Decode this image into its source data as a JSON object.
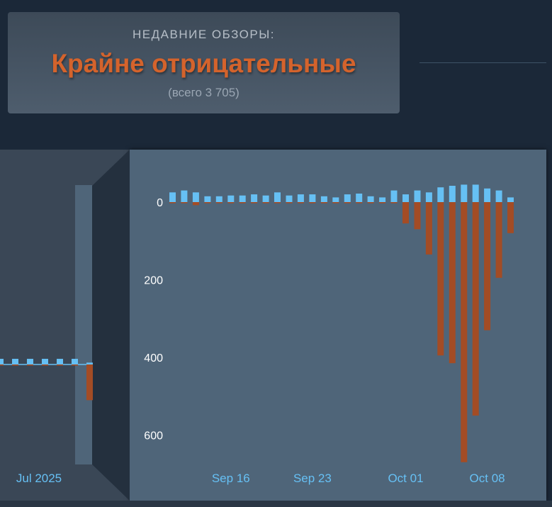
{
  "review_summary": {
    "heading": "НЕДАВНИЕ ОБЗОРЫ:",
    "rating": "Крайне отрицательные",
    "total": "(всего 3 705)"
  },
  "colors": {
    "positive": "#66c0f4",
    "negative": "#a34c25",
    "rating_accent": "#d4632c",
    "panel_background": "#4f6579",
    "page_background": "#1b2838"
  },
  "chart_data": [
    {
      "type": "bar",
      "label": "overview",
      "x_tick_labels": [
        "Jul 2025"
      ],
      "series": [
        {
          "values": [
            15,
            15,
            15,
            15,
            15,
            15,
            5
          ]
        },
        {
          "values": [
            -3,
            -3,
            -3,
            -3,
            -3,
            -3,
            -95
          ]
        }
      ]
    },
    {
      "type": "bar",
      "label": "detail",
      "x_tick_labels": [
        "Sep 16",
        "Sep 23",
        "Oct 01",
        "Oct 08"
      ],
      "y_tick_labels": [
        "0",
        "200",
        "400",
        "600"
      ],
      "ylim": [
        -680,
        45
      ],
      "grid": false,
      "series": [
        {
          "values": [
            25,
            30,
            25,
            15,
            15,
            17,
            17,
            20,
            17,
            25,
            17,
            20,
            20,
            15,
            12,
            20,
            22,
            15,
            12,
            30,
            20,
            30,
            25,
            38,
            42,
            45,
            45,
            35,
            30,
            12
          ]
        },
        {
          "values": [
            -3,
            -3,
            -8,
            -3,
            -3,
            -3,
            -3,
            -3,
            -3,
            -3,
            -3,
            -3,
            -3,
            -3,
            -3,
            -3,
            -3,
            -3,
            -3,
            -3,
            -55,
            -70,
            -135,
            -395,
            -415,
            -670,
            -550,
            -330,
            -195,
            -80
          ]
        }
      ]
    }
  ]
}
